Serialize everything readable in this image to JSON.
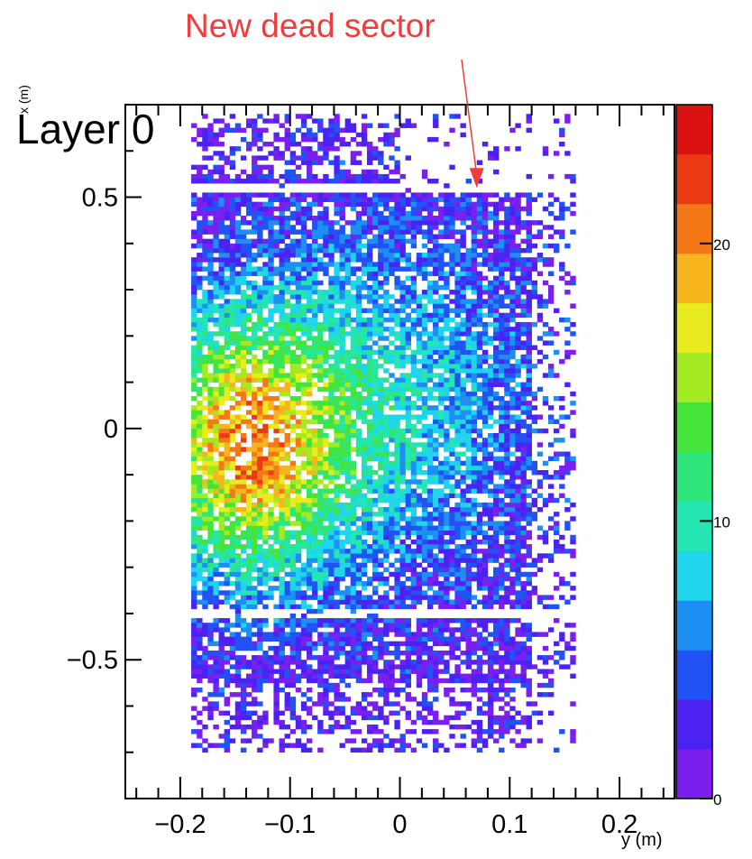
{
  "annotation": "New dead sector",
  "chart_data": {
    "type": "heatmap",
    "title": "Layer 0",
    "xlabel": "y (m)",
    "ylabel": "x (m)",
    "xlim": [
      -0.25,
      0.25
    ],
    "ylim": [
      -0.8,
      0.7
    ],
    "zlim": [
      0,
      25
    ],
    "x_ticks": [
      -0.2,
      -0.1,
      0,
      0.1,
      0.2
    ],
    "x_tick_labels": [
      "−0.2",
      "−0.1",
      "0",
      "0.1",
      "0.2"
    ],
    "y_ticks": [
      -0.5,
      0,
      0.5
    ],
    "y_tick_labels": [
      "−0.5",
      "0",
      "0.5"
    ],
    "z_ticks": [
      0,
      10,
      20
    ],
    "z_tick_labels": [
      "0",
      "10",
      "20"
    ],
    "bins_x": 100,
    "bins_y": 150,
    "populated_region": {
      "y_min": -0.19,
      "y_max": 0.14,
      "x_min": -0.7,
      "x_max": 0.68
    },
    "gaps_x": [
      0.52,
      -0.4
    ],
    "dead_sector": {
      "y_min": 0.0,
      "y_max": 0.14,
      "x_min": 0.52,
      "x_max": 0.68
    },
    "hotspot": {
      "y": -0.14,
      "x": -0.03,
      "z": 22
    },
    "annotation_arrow_target": {
      "y": 0.07,
      "x": 0.52
    },
    "palette": [
      "#7b1fef",
      "#4b22f2",
      "#2052f4",
      "#1e8ff2",
      "#1ed5ec",
      "#23e6b2",
      "#2ee57a",
      "#45e43a",
      "#a3ea22",
      "#e8ec1e",
      "#f7b41c",
      "#f57817",
      "#ec3a15",
      "#dc1111"
    ],
    "annotation_color": "#f03c3c"
  }
}
